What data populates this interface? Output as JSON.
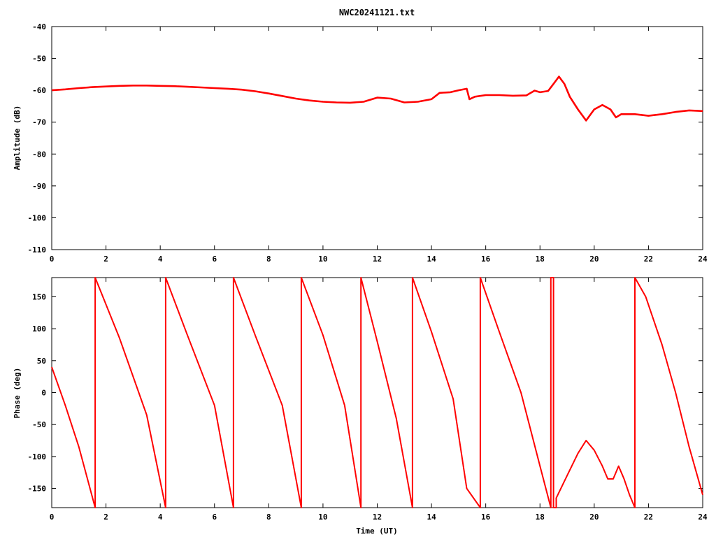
{
  "chart_data": [
    {
      "type": "line",
      "title": "NWC20241121.txt",
      "xlabel": "",
      "ylabel": "Amplitude (dB)",
      "xlim": [
        0,
        24
      ],
      "ylim": [
        -110,
        -40
      ],
      "x_ticks": [
        "0",
        "2",
        "4",
        "6",
        "8",
        "10",
        "12",
        "14",
        "16",
        "18",
        "20",
        "22",
        "24"
      ],
      "y_ticks": [
        "-40",
        "-50",
        "-60",
        "-70",
        "-80",
        "-90",
        "-100",
        "-110"
      ],
      "grid": false,
      "color": "#ff0000",
      "series": [
        {
          "x": [
            0,
            0.5,
            1,
            1.5,
            2,
            2.5,
            3,
            3.5,
            4,
            4.5,
            5,
            5.5,
            6,
            6.5,
            7,
            7.5,
            8,
            8.5,
            9,
            9.5,
            10,
            10.5,
            11,
            11.5,
            12,
            12.5,
            13,
            13.5,
            14,
            14.3,
            14.7,
            15,
            15.3,
            15.4,
            15.6,
            16,
            16.5,
            17,
            17.5,
            17.8,
            18,
            18.3,
            18.5,
            18.7,
            18.9,
            19.1,
            19.4,
            19.7,
            20,
            20.3,
            20.6,
            20.8,
            21,
            21.5,
            22,
            22.5,
            23,
            23.5,
            24
          ],
          "y": [
            -60,
            -59.7,
            -59.3,
            -59,
            -58.8,
            -58.6,
            -58.5,
            -58.5,
            -58.6,
            -58.7,
            -58.9,
            -59.1,
            -59.3,
            -59.5,
            -59.8,
            -60.3,
            -61,
            -61.8,
            -62.6,
            -63.2,
            -63.6,
            -63.8,
            -63.9,
            -63.6,
            -62.3,
            -62.6,
            -63.8,
            -63.6,
            -62.8,
            -60.8,
            -60.6,
            -60,
            -59.5,
            -62.8,
            -62,
            -61.5,
            -61.5,
            -61.7,
            -61.6,
            -60.1,
            -60.6,
            -60.2,
            -58,
            -55.7,
            -58,
            -62,
            -66,
            -69.5,
            -66,
            -64.6,
            -66,
            -68.5,
            -67.5,
            -67.5,
            -68,
            -67.5,
            -66.8,
            -66.3,
            -66.5
          ]
        }
      ]
    },
    {
      "type": "line",
      "title": "",
      "xlabel": "Time (UT)",
      "ylabel": "Phase (deg)",
      "xlim": [
        0,
        24
      ],
      "ylim": [
        -180,
        180
      ],
      "x_ticks": [
        "0",
        "2",
        "4",
        "6",
        "8",
        "10",
        "12",
        "14",
        "16",
        "18",
        "20",
        "22",
        "24"
      ],
      "y_ticks": [
        "150",
        "100",
        "50",
        "0",
        "-50",
        "-100",
        "-150"
      ],
      "grid": false,
      "color": "#ff0000",
      "series": [
        {
          "x": [
            0,
            0.5,
            1,
            1.6,
            1.6,
            2.5,
            3.5,
            4.2,
            4.2,
            5,
            6,
            6.7,
            6.7,
            7.5,
            8.5,
            9.2,
            9.2,
            10,
            10.8,
            11.4,
            11.4,
            12,
            12.7,
            13.3,
            13.3,
            14,
            14.8,
            15.3,
            15.8,
            15.8,
            16.5,
            17.3,
            18,
            18.4,
            18.4,
            18.5,
            18.5,
            18.6,
            18.6,
            19,
            19.4,
            19.7,
            20,
            20.3,
            20.5,
            20.7,
            20.9,
            21.1,
            21.3,
            21.5,
            21.5,
            21.9,
            22.5,
            23,
            23.5,
            24
          ],
          "y": [
            40,
            -20,
            -85,
            -180,
            180,
            85,
            -35,
            -180,
            180,
            90,
            -20,
            -180,
            180,
            90,
            -20,
            -180,
            180,
            90,
            -20,
            -180,
            180,
            80,
            -40,
            -180,
            180,
            95,
            -10,
            -150,
            -180,
            180,
            95,
            0,
            -115,
            -180,
            180,
            180,
            -180,
            -180,
            -165,
            -130,
            -95,
            -75,
            -90,
            -115,
            -135,
            -135,
            -115,
            -135,
            -160,
            -180,
            180,
            150,
            75,
            0,
            -85,
            -160
          ]
        }
      ]
    }
  ]
}
